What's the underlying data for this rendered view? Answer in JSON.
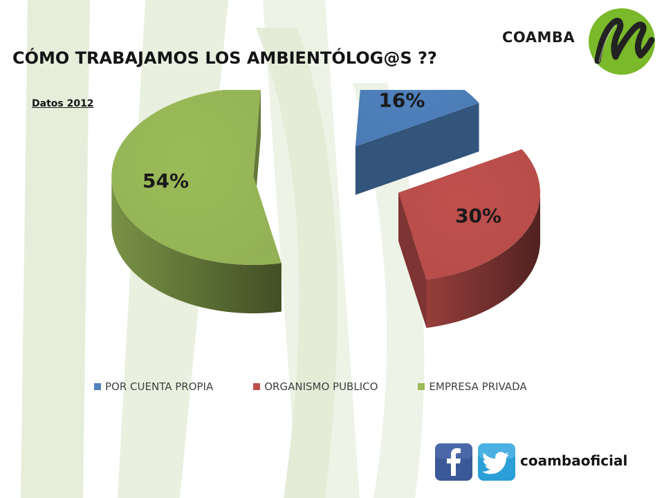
{
  "brand": "COAMBA",
  "title": "CÓMO TRABAJAMOS LOS AMBIENTÓLOG@S ??",
  "subtitle": "Datos 2012",
  "social": {
    "handle": "coambaoficial",
    "icons": [
      "facebook-icon",
      "twitter-icon"
    ]
  },
  "colors": {
    "blue": "#4f81bd",
    "red": "#c0504d",
    "green": "#9bbb59",
    "logo_green": "#7ab929"
  },
  "chart_data": {
    "type": "pie",
    "style": "3d-exploded",
    "categories": [
      "POR CUENTA PROPIA",
      "ORGANISMO PUBLICO",
      "EMPRESA PRIVADA"
    ],
    "values": [
      16,
      30,
      54
    ],
    "labels": [
      "16%",
      "30%",
      "54%"
    ],
    "colors": [
      "#4f81bd",
      "#c0504d",
      "#9bbb59"
    ],
    "legend_position": "bottom"
  }
}
